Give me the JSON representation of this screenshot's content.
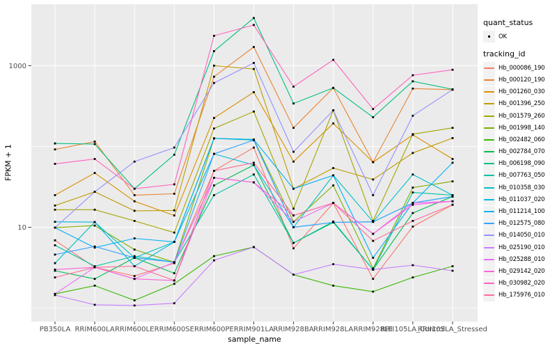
{
  "legend": {
    "quant_status_title": "quant_status",
    "quant_ok_label": "OK",
    "tracking_title": "tracking_id"
  },
  "colors": {
    "page_bg": "#FFFFFF",
    "panel_bg": "#EBEBEB",
    "grid": "#FFFFFF",
    "tick_mark": "#333333",
    "tick_text": "#4D4D4D",
    "point": "#000000",
    "legend_key_bg": "#F2F2F2"
  },
  "chart_data": {
    "type": "line",
    "title": "",
    "xlabel": "sample_name",
    "ylabel": "FPKM + 1",
    "y_scale": "log10",
    "ylim": [
      0.7,
      5600
    ],
    "grid": "on",
    "legend_position": "right",
    "y_ticks": [
      {
        "label": "1000",
        "value": 1000
      },
      {
        "label": "10",
        "value": 10
      }
    ],
    "y_minor_grid_values": [
      100,
      1
    ],
    "categories": [
      "PB350LA",
      "RRIM600LA",
      "RRIM600LE",
      "RRIM600SE",
      "RRIM600PE",
      "RRIM901LA",
      "RRIM928BA",
      "RRIM928LA",
      "RRIM928LE",
      "RRII105LA_Control",
      "RRII105LA_Stressed"
    ],
    "quant_status": "OK",
    "series": [
      {
        "name": "Hb_000086_190",
        "color": "#F8766D",
        "values": [
          6.9,
          3.2,
          2.5,
          3.6,
          50,
          97,
          5.5,
          20,
          2.3,
          10.2,
          19
        ]
      },
      {
        "name": "Hb_000120_190",
        "color": "#EA8331",
        "values": [
          92,
          115,
          25,
          26,
          730,
          1700,
          170,
          530,
          64,
          520,
          505
        ]
      },
      {
        "name": "Hb_001260_030",
        "color": "#D89000",
        "values": [
          25,
          47,
          21,
          14,
          225,
          470,
          65,
          193,
          64,
          139,
          70
        ]
      },
      {
        "name": "Hb_001396_250",
        "color": "#C09B00",
        "values": [
          18.6,
          27.5,
          16,
          16.2,
          1000,
          910,
          30,
          54,
          39,
          83,
          127
        ]
      },
      {
        "name": "Hb_001579_260",
        "color": "#A3A500",
        "values": [
          16.5,
          16.5,
          12,
          8.6,
          167,
          270,
          17,
          280,
          12,
          142,
          170
        ]
      },
      {
        "name": "Hb_001998_140",
        "color": "#7CAE00",
        "values": [
          9.9,
          10.5,
          5.3,
          3.7,
          126,
          122,
          11.7,
          33,
          3.1,
          31,
          37
        ]
      },
      {
        "name": "Hb_002482_060",
        "color": "#39B600",
        "values": [
          1.5,
          1.9,
          1.25,
          2.0,
          4.4,
          5.7,
          2.6,
          1.9,
          1.6,
          2.4,
          3.3
        ]
      },
      {
        "name": "Hb_002784_070",
        "color": "#00BB4E",
        "values": [
          2.9,
          2.3,
          4.2,
          2.7,
          33,
          59,
          6.4,
          11.5,
          3.0,
          15,
          24
        ]
      },
      {
        "name": "Hb_006198_090",
        "color": "#00BF7D",
        "values": [
          109,
          107,
          30,
          79,
          1510,
          3880,
          340,
          530,
          230,
          640,
          510
        ]
      },
      {
        "name": "Hb_007763_050",
        "color": "#00C1A3",
        "values": [
          6.0,
          3.3,
          4.4,
          3.7,
          25,
          45,
          6.4,
          11.8,
          3.0,
          27,
          25
        ]
      },
      {
        "name": "Hb_010358_030",
        "color": "#00BFC4",
        "values": [
          3.6,
          11.6,
          4.2,
          6.6,
          126,
          120,
          10,
          44,
          11.7,
          45,
          25
        ]
      },
      {
        "name": "Hb_011037_020",
        "color": "#00BAE0",
        "values": [
          11.7,
          11.6,
          3.3,
          6.6,
          81,
          59,
          10,
          11.5,
          11.7,
          20,
          24
        ]
      },
      {
        "name": "Hb_011214_100",
        "color": "#00B0F6",
        "values": [
          9.9,
          5.6,
          7.3,
          6.6,
          126,
          122,
          30,
          44,
          4.2,
          20,
          63
        ]
      },
      {
        "name": "Hb_012575_080",
        "color": "#35A2FF",
        "values": [
          4.6,
          5.8,
          4.2,
          3.7,
          81,
          120,
          10,
          11.5,
          11.7,
          20,
          24
        ]
      },
      {
        "name": "Hb_014050_010",
        "color": "#9590FF",
        "values": [
          9.9,
          27.5,
          65,
          97,
          610,
          1080,
          86,
          280,
          25,
          240,
          505
        ]
      },
      {
        "name": "Hb_025190_010",
        "color": "#C77CFF",
        "values": [
          1.45,
          1.1,
          1.08,
          1.15,
          3.9,
          5.7,
          2.6,
          3.5,
          3.0,
          3.4,
          2.9
        ]
      },
      {
        "name": "Hb_025288_010",
        "color": "#E76BF3",
        "values": [
          1.5,
          3.2,
          2.3,
          3.7,
          41,
          36,
          11.7,
          20,
          8.3,
          20,
          21
        ]
      },
      {
        "name": "Hb_029142_020",
        "color": "#FA62DB",
        "values": [
          3.0,
          3.2,
          2.3,
          2.2,
          41,
          36,
          14,
          20,
          8.3,
          19,
          21
        ]
      },
      {
        "name": "Hb_030982_020",
        "color": "#FF62BC",
        "values": [
          61,
          70,
          30,
          34,
          2340,
          3180,
          550,
          1180,
          290,
          760,
          890
        ]
      },
      {
        "name": "Hb_175976_010",
        "color": "#FF6A98",
        "values": [
          2.4,
          3.2,
          3.3,
          2.2,
          50,
          63,
          14,
          20,
          6.8,
          12,
          19
        ]
      }
    ]
  }
}
